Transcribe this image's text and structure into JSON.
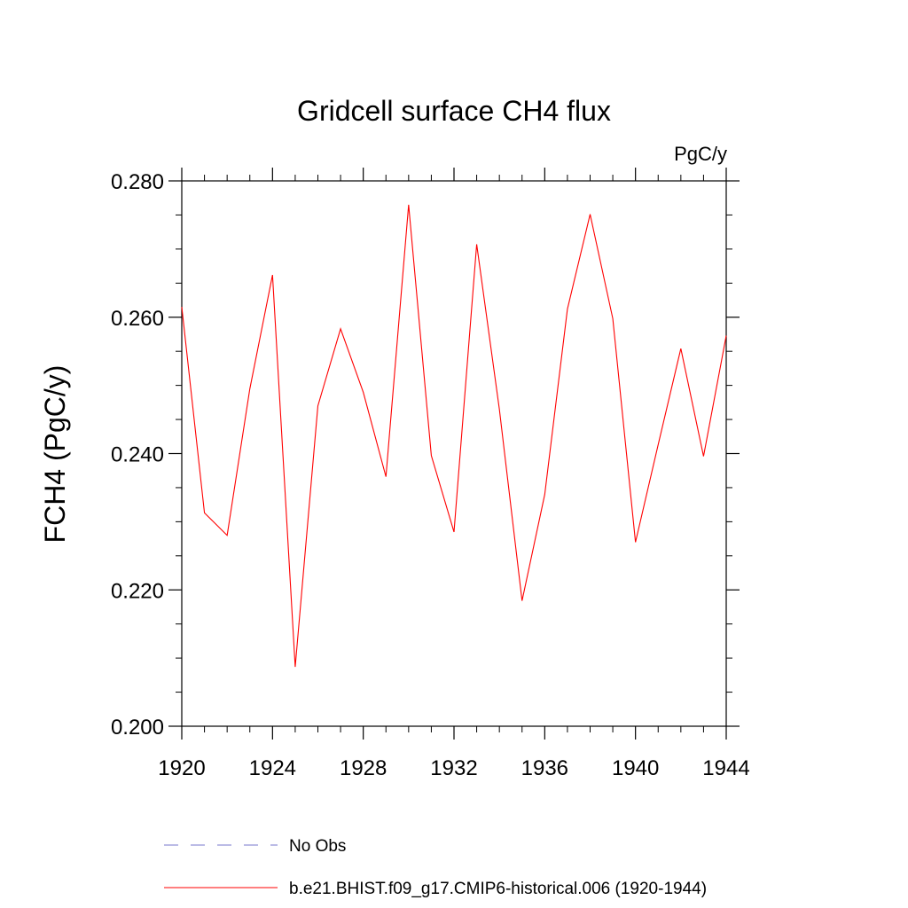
{
  "chart_data": {
    "type": "line",
    "title": "Gridcell surface CH4 flux",
    "units_label": "PgC/y",
    "ylabel": "FCH4  (PgC/y)",
    "xlabel": "",
    "xlim": [
      1920,
      1944
    ],
    "ylim": [
      0.2,
      0.28
    ],
    "xticks": [
      "1920",
      "1924",
      "1928",
      "1932",
      "1936",
      "1940",
      "1944"
    ],
    "yticks": [
      "0.200",
      "0.220",
      "0.240",
      "0.260",
      "0.280"
    ],
    "series": [
      {
        "name": "b.e21.BHIST.f09_g17.CMIP6-historical.006 (1920-1944)",
        "color": "#ff0000",
        "x": [
          1920,
          1921,
          1922,
          1923,
          1924,
          1925,
          1926,
          1927,
          1928,
          1929,
          1930,
          1931,
          1932,
          1933,
          1934,
          1935,
          1936,
          1937,
          1938,
          1939,
          1940,
          1941,
          1942,
          1943,
          1944
        ],
        "values": [
          0.2615,
          0.2313,
          0.228,
          0.2495,
          0.2662,
          0.2087,
          0.247,
          0.2583,
          0.249,
          0.2366,
          0.2765,
          0.2397,
          0.2285,
          0.2707,
          0.2465,
          0.2184,
          0.234,
          0.2612,
          0.2751,
          0.2598,
          0.227,
          0.2413,
          0.2554,
          0.2396,
          0.2573
        ]
      }
    ],
    "legend": [
      {
        "label": "No Obs",
        "style": "dashed",
        "color": "#7777cc"
      },
      {
        "label": "b.e21.BHIST.f09_g17.CMIP6-historical.006 (1920-1944)",
        "style": "solid",
        "color": "#ff0000"
      }
    ]
  }
}
